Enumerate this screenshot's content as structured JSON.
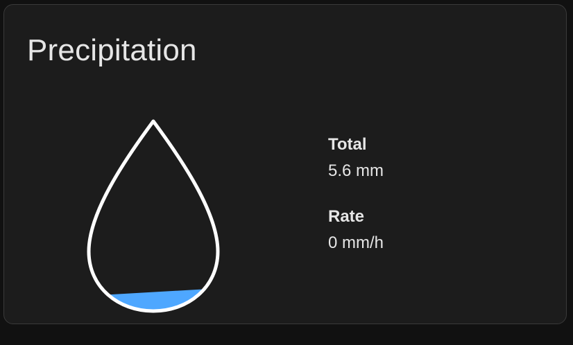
{
  "card": {
    "title": "Precipitation"
  },
  "gauge": {
    "icon": "raindrop-icon",
    "fill_fraction": 0.1,
    "fill_color": "#4ea7ff",
    "outline_color": "#ffffff"
  },
  "stats": {
    "total": {
      "label": "Total",
      "value": "5.6 mm"
    },
    "rate": {
      "label": "Rate",
      "value": "0 mm/h"
    }
  }
}
